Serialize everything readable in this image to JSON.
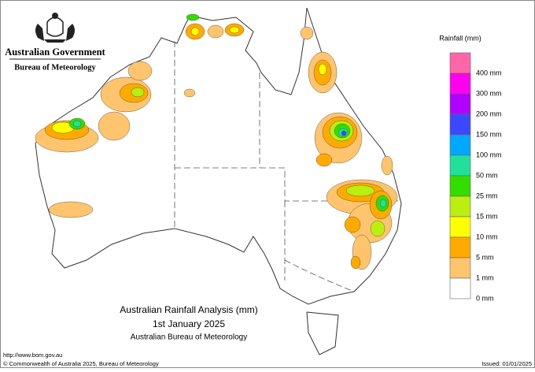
{
  "header": {
    "government": "Australian Government",
    "agency": "Bureau of Meteorology"
  },
  "legend": {
    "title": "Rainfall (mm)",
    "items": [
      {
        "label": "400 mm",
        "color": "#ff66aa"
      },
      {
        "label": "300 mm",
        "color": "#ff00ee"
      },
      {
        "label": "200 mm",
        "color": "#b000ff"
      },
      {
        "label": "150 mm",
        "color": "#3c48ff"
      },
      {
        "label": "100 mm",
        "color": "#00a8ff"
      },
      {
        "label": "50 mm",
        "color": "#22e09a"
      },
      {
        "label": "25 mm",
        "color": "#33dd00"
      },
      {
        "label": "15 mm",
        "color": "#bbee11"
      },
      {
        "label": "10 mm",
        "color": "#ffff00"
      },
      {
        "label": "5 mm",
        "color": "#ffaa00"
      },
      {
        "label": "1 mm",
        "color": "#ffc46e"
      },
      {
        "label": "0 mm",
        "color": "#ffffff"
      }
    ]
  },
  "map_title": {
    "line1": "Australian Rainfall Analysis (mm)",
    "line2": "1st January 2025",
    "line3": "Australian Bureau of Meteorology"
  },
  "footer": {
    "url": "http://www.bom.gov.au",
    "copyright": "© Commonwealth of Australia 2025, Bureau of Meteorology",
    "issued": "Issued: 01/01/2025"
  }
}
